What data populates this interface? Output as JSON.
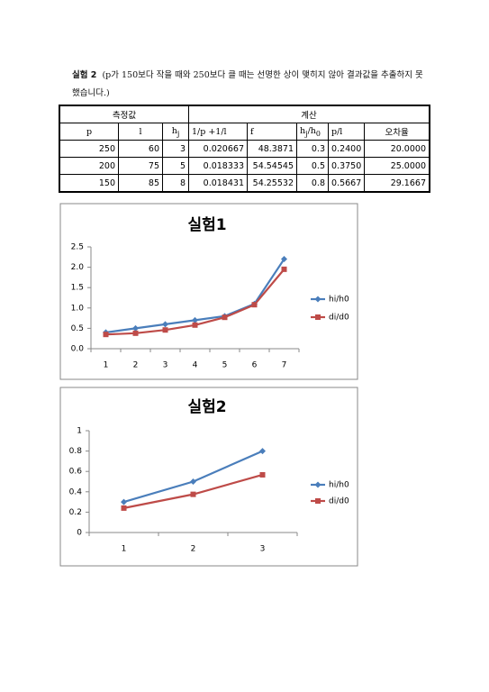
{
  "document": {
    "paragraph": {
      "label": "실험 2",
      "text": "(p가 150보다 작을 때와 250보다 클 때는 선명한 상이 맺히지 않아 결과값을 추출하지 못했습니다.)"
    },
    "table": {
      "group_headers": [
        "측정값",
        "계산"
      ],
      "headers": [
        "p",
        "l",
        {
          "text": "h",
          "sub": "j"
        },
        "1/p  +1/l",
        "f",
        [
          {
            "text": "h",
            "sub": "j"
          },
          {
            "text": "/h",
            "sub": "0"
          }
        ],
        "p/l",
        "오차율"
      ],
      "rows": [
        [
          "250",
          "60",
          "3",
          "0.020667",
          "48.3871",
          "0.3",
          "0.2400",
          "20.0000"
        ],
        [
          "200",
          "75",
          "5",
          "0.018333",
          "54.54545",
          "0.5",
          "0.3750",
          "25.0000"
        ],
        [
          "150",
          "85",
          "8",
          "0.018431",
          "54.25532",
          "0.8",
          "0.5667",
          "29.1667"
        ]
      ]
    }
  },
  "chart_data": [
    {
      "type": "line",
      "title": "실험1",
      "categories": [
        "1",
        "2",
        "3",
        "4",
        "5",
        "6",
        "7"
      ],
      "series": [
        {
          "name": "hi/h0",
          "color": "#4a7ebb",
          "marker": "diamond",
          "values": [
            0.4,
            0.5,
            0.6,
            0.7,
            0.8,
            1.1,
            2.2
          ]
        },
        {
          "name": "di/d0",
          "color": "#be4b48",
          "marker": "square",
          "values": [
            0.35,
            0.38,
            0.46,
            0.58,
            0.77,
            1.08,
            1.95
          ]
        }
      ],
      "ylim": [
        0,
        2.5
      ],
      "yticks": [
        {
          "value": 0,
          "label": "0.0"
        },
        {
          "value": 0.5,
          "label": "0.5"
        },
        {
          "value": 1,
          "label": "1.0"
        },
        {
          "value": 1.5,
          "label": "1.5"
        },
        {
          "value": 2,
          "label": "2.0"
        },
        {
          "value": 2.5,
          "label": "2.5"
        }
      ],
      "grid": false,
      "legend": "right"
    },
    {
      "type": "line",
      "title": "실험2",
      "categories": [
        "1",
        "2",
        "3"
      ],
      "series": [
        {
          "name": "hi/h0",
          "color": "#4a7ebb",
          "marker": "diamond",
          "values": [
            0.3,
            0.5,
            0.8
          ]
        },
        {
          "name": "di/d0",
          "color": "#be4b48",
          "marker": "square",
          "values": [
            0.24,
            0.375,
            0.5667
          ]
        }
      ],
      "ylim": [
        0,
        1
      ],
      "yticks": [
        0,
        0.2,
        0.4,
        0.6,
        0.8,
        1
      ],
      "grid": false,
      "legend": "right"
    }
  ]
}
